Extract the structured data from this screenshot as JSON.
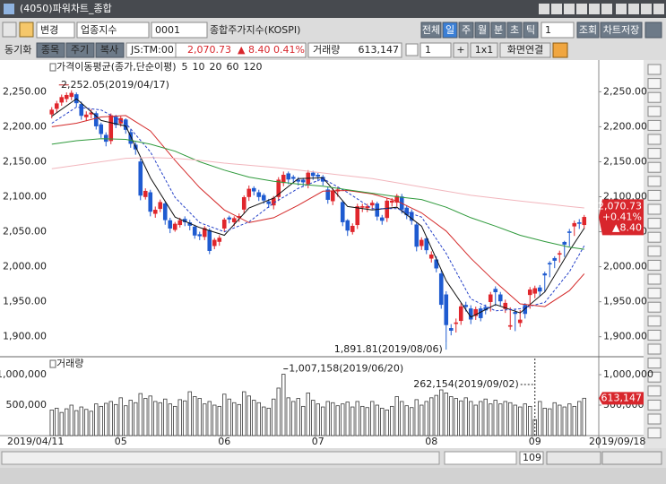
{
  "window": {
    "title": "(4050)파워차트_종합"
  },
  "toolbar": {
    "change": "변경",
    "market": "업종지수",
    "code": "0001",
    "name": "종합주가지수(KOSPI)",
    "periods": [
      "전체",
      "일",
      "주",
      "월",
      "분",
      "초",
      "틱"
    ],
    "count": "1",
    "query": "조회",
    "save": "차트저장",
    "sync": "동기화",
    "sync_buttons": [
      "종목",
      "주기",
      "복사"
    ],
    "time": "JS:TM:00",
    "price": "2,070.73",
    "change_value": "▲ 8.40",
    "change_pct": "0.41%",
    "volume_label": "거래량",
    "volume": "613,147",
    "layout_count": "1",
    "plus": "+",
    "grid": "1x1",
    "link": "화면연결"
  },
  "chart_data": [
    {
      "type": "candlestick",
      "legend_title": "가격이동평균(종가,단순이평)",
      "up_color": "#e0262c",
      "down_color": "#1f5bd0",
      "categories": [
        "2019/04/11",
        null,
        null,
        null,
        null,
        null,
        null,
        null,
        null,
        null,
        null,
        null,
        null,
        null,
        "05",
        null,
        null,
        null,
        null,
        null,
        null,
        null,
        null,
        null,
        null,
        null,
        null,
        null,
        null,
        null,
        null,
        null,
        null,
        null,
        null,
        "06",
        null,
        null,
        null,
        null,
        null,
        null,
        null,
        null,
        null,
        null,
        null,
        null,
        null,
        null,
        null,
        null,
        null,
        null,
        "07",
        null,
        null,
        null,
        null,
        null,
        null,
        null,
        null,
        null,
        null,
        null,
        null,
        null,
        null,
        null,
        null,
        null,
        null,
        null,
        null,
        null,
        null,
        "08",
        null,
        null,
        null,
        null,
        null,
        null,
        null,
        null,
        null,
        null,
        null,
        null,
        null,
        null,
        null,
        null,
        null,
        null,
        null,
        null,
        "09",
        null,
        null,
        null,
        null,
        null,
        null,
        null,
        null,
        null,
        "2019/09/18"
      ],
      "open": [
        2218,
        2226,
        2235,
        2240,
        2243,
        2246,
        2232,
        2214,
        2218,
        2219,
        2203,
        2188,
        2180,
        2214,
        2205,
        2210,
        2192,
        2174,
        2150,
        2100,
        2106,
        2076,
        2083,
        2090,
        2066,
        2053,
        2060,
        2068,
        2063,
        2057,
        2046,
        2043,
        2052,
        2030,
        2036,
        2055,
        2070,
        2064,
        2070,
        2082,
        2100,
        2112,
        2106,
        2102,
        2093,
        2088,
        2100,
        2120,
        2133,
        2128,
        2124,
        2124,
        2118,
        2134,
        2131,
        2128,
        2110,
        2094,
        2108,
        2092,
        2066,
        2050,
        2060,
        2085,
        2084,
        2088,
        2090,
        2070,
        2070,
        2092,
        2092,
        2100,
        2084,
        2078,
        2060,
        2030,
        2040,
        2012,
        2010,
        1990,
        1960,
        1912,
        1920,
        1923,
        1945,
        1940,
        1930,
        1940,
        1942,
        1950,
        1968,
        1960,
        1940,
        1915,
        1935,
        1920,
        1945,
        1960,
        1962,
        1970,
        1990,
        2005,
        2012,
        2018,
        2035,
        2050,
        2058,
        2063,
        2060
      ],
      "high": [
        2228,
        2237,
        2246,
        2249,
        2252.05,
        2249,
        2236,
        2222,
        2225,
        2222,
        2206,
        2192,
        2219,
        2217,
        2215,
        2212,
        2196,
        2178,
        2155,
        2112,
        2110,
        2086,
        2096,
        2093,
        2070,
        2064,
        2070,
        2072,
        2067,
        2060,
        2050,
        2058,
        2055,
        2041,
        2045,
        2070,
        2073,
        2072,
        2076,
        2102,
        2116,
        2115,
        2110,
        2105,
        2097,
        2101,
        2128,
        2136,
        2136,
        2131,
        2128,
        2127,
        2138,
        2137,
        2134,
        2131,
        2114,
        2112,
        2114,
        2095,
        2068,
        2062,
        2090,
        2090,
        2090,
        2095,
        2093,
        2074,
        2098,
        2098,
        2104,
        2104,
        2088,
        2082,
        2063,
        2042,
        2043,
        2022,
        2015,
        1995,
        1965,
        1918,
        1926,
        1948,
        1950,
        1945,
        1943,
        1944,
        1946,
        1964,
        1972,
        1964,
        1953,
        1942,
        1940,
        1938,
        1948,
        1971,
        1973,
        1974,
        1993,
        2008,
        2015,
        2023,
        2037,
        2054,
        2066,
        2068,
        2074
      ],
      "low": [
        2212,
        2220,
        2230,
        2235,
        2238,
        2228,
        2210,
        2208,
        2212,
        2196,
        2184,
        2172,
        2175,
        2198,
        2200,
        2190,
        2170,
        2160,
        2095,
        2096,
        2072,
        2070,
        2078,
        2060,
        2048,
        2050,
        2056,
        2058,
        2052,
        2040,
        2038,
        2038,
        2018,
        2025,
        2030,
        2050,
        2062,
        2058,
        2064,
        2076,
        2094,
        2102,
        2094,
        2090,
        2084,
        2082,
        2094,
        2115,
        2118,
        2120,
        2116,
        2114,
        2112,
        2124,
        2122,
        2116,
        2090,
        2088,
        2100,
        2058,
        2044,
        2046,
        2054,
        2078,
        2078,
        2082,
        2066,
        2060,
        2064,
        2086,
        2086,
        2076,
        2068,
        2060,
        2022,
        2024,
        2018,
        2006,
        1992,
        1940,
        1891.81,
        1902,
        1906,
        1917,
        1936,
        1918,
        1924,
        1922,
        1932,
        1936,
        1944,
        1944,
        1934,
        1910,
        1908,
        1914,
        1926,
        1940,
        1955,
        1958,
        1964,
        1985,
        1998,
        2006,
        2014,
        2029,
        2044,
        2054,
        2054
      ],
      "close": [
        2224,
        2233,
        2242,
        2245,
        2248,
        2234,
        2216,
        2217,
        2220,
        2201,
        2190,
        2179,
        2216,
        2203,
        2212,
        2196,
        2176,
        2168,
        2102,
        2108,
        2079,
        2081,
        2092,
        2067,
        2055,
        2061,
        2066,
        2064,
        2059,
        2045,
        2044,
        2055,
        2023,
        2038,
        2041,
        2067,
        2068,
        2069,
        2072,
        2099,
        2111,
        2108,
        2100,
        2095,
        2090,
        2098,
        2124,
        2131,
        2125,
        2126,
        2122,
        2121,
        2134,
        2130,
        2129,
        2122,
        2096,
        2108,
        2110,
        2064,
        2052,
        2058,
        2086,
        2086,
        2086,
        2091,
        2072,
        2066,
        2094,
        2094,
        2101,
        2082,
        2074,
        2066,
        2029,
        2038,
        2024,
        2017,
        1998,
        1946,
        1917,
        1909,
        1920,
        1943,
        1943,
        1925,
        1939,
        1927,
        1938,
        1960,
        1964,
        1951,
        1948,
        1916,
        1933,
        1924,
        1933,
        1967,
        1969,
        1965,
        1988,
        2004,
        2009,
        2019,
        2032,
        2049,
        2062,
        2062,
        2070.73
      ],
      "series": [
        {
          "name": "5",
          "color": "#111111",
          "dash": false,
          "x": [
            0,
            5,
            10,
            15,
            20,
            25,
            30,
            35,
            40,
            45,
            50,
            55,
            60,
            65,
            70,
            75,
            80,
            85,
            90,
            95,
            100,
            105,
            108
          ],
          "values": [
            2215,
            2240,
            2209,
            2201,
            2127,
            2071,
            2056,
            2045,
            2084,
            2098,
            2126,
            2127,
            2086,
            2081,
            2085,
            2058,
            1980,
            1928,
            1946,
            1934,
            1964,
            2023,
            2055
          ]
        },
        {
          "name": "10",
          "color": "#2440c8",
          "dash": true,
          "x": [
            0,
            5,
            10,
            15,
            20,
            25,
            30,
            35,
            40,
            45,
            50,
            55,
            60,
            65,
            70,
            75,
            80,
            85,
            90,
            95,
            100,
            105,
            108
          ],
          "values": [
            2205,
            2228,
            2224,
            2205,
            2164,
            2099,
            2063,
            2050,
            2064,
            2091,
            2112,
            2126,
            2106,
            2083,
            2083,
            2071,
            2019,
            1954,
            1937,
            1940,
            1949,
            1993,
            2030
          ]
        },
        {
          "name": "20",
          "color": "#d42a2a",
          "dash": false,
          "x": [
            0,
            5,
            10,
            15,
            20,
            25,
            30,
            35,
            40,
            45,
            50,
            55,
            60,
            65,
            70,
            75,
            80,
            85,
            90,
            95,
            100,
            105,
            108
          ],
          "values": [
            2200,
            2205,
            2214,
            2216,
            2194,
            2152,
            2113,
            2081,
            2063,
            2070,
            2088,
            2108,
            2109,
            2104,
            2094,
            2077,
            2051,
            2012,
            1978,
            1947,
            1943,
            1966,
            1990
          ]
        },
        {
          "name": "60",
          "color": "#2f9a3c",
          "dash": false,
          "x": [
            0,
            5,
            10,
            15,
            20,
            25,
            30,
            35,
            40,
            45,
            50,
            55,
            60,
            65,
            70,
            75,
            80,
            85,
            90,
            95,
            100,
            105,
            108
          ],
          "values": [
            2175,
            2180,
            2183,
            2182,
            2175,
            2165,
            2150,
            2138,
            2128,
            2122,
            2118,
            2115,
            2110,
            2105,
            2100,
            2096,
            2085,
            2070,
            2058,
            2045,
            2036,
            2028,
            2025
          ]
        },
        {
          "name": "120",
          "color": "#f2b6bd",
          "dash": false,
          "x": [
            0,
            5,
            10,
            15,
            20,
            25,
            30,
            35,
            40,
            45,
            50,
            55,
            60,
            65,
            70,
            75,
            80,
            85,
            90,
            95,
            100,
            105,
            108
          ],
          "values": [
            2140,
            2145,
            2150,
            2155,
            2156,
            2155,
            2152,
            2148,
            2145,
            2142,
            2138,
            2134,
            2130,
            2126,
            2120,
            2114,
            2108,
            2102,
            2098,
            2094,
            2090,
            2086,
            2084
          ]
        }
      ],
      "ylim": [
        1874,
        2294
      ],
      "yticks": [
        {
          "value": 2250,
          "label": "2,250.00"
        },
        {
          "value": 2200,
          "label": "2,200.00"
        },
        {
          "value": 2150,
          "label": "2,150.00"
        },
        {
          "value": 2100,
          "label": "2,100.00"
        },
        {
          "value": 2050,
          "label": "2,050.00"
        },
        {
          "value": 2000,
          "label": "2,000.00"
        },
        {
          "value": 1950,
          "label": "1,950.00"
        },
        {
          "value": 1900,
          "label": "1,900.00"
        }
      ],
      "annotations": [
        "2,252.05(2019/04/17)",
        "1,891.81(2019/08/06)"
      ],
      "last_tag": [
        "2,070.73",
        "+0.41%",
        "▲8.40"
      ]
    },
    {
      "type": "bar",
      "legend_title": "거래량",
      "values": [
        420000,
        450000,
        380000,
        440000,
        500000,
        410000,
        470000,
        430000,
        400000,
        520000,
        480000,
        530000,
        560000,
        510000,
        620000,
        490000,
        580000,
        540000,
        690000,
        610000,
        650000,
        560000,
        540000,
        600000,
        520000,
        480000,
        590000,
        570000,
        720000,
        640000,
        610000,
        520000,
        560000,
        500000,
        480000,
        680000,
        600000,
        540000,
        510000,
        720000,
        650000,
        580000,
        540000,
        470000,
        450000,
        600000,
        780000,
        1007158,
        620000,
        560000,
        610000,
        480000,
        700000,
        580000,
        520000,
        470000,
        560000,
        540000,
        490000,
        520000,
        550000,
        470000,
        560000,
        480000,
        460000,
        560000,
        500000,
        450000,
        420000,
        480000,
        640000,
        560000,
        490000,
        460000,
        590000,
        500000,
        560000,
        620000,
        660000,
        750000,
        700000,
        640000,
        610000,
        570000,
        620000,
        560000,
        500000,
        560000,
        600000,
        520000,
        580000,
        520000,
        560000,
        540000,
        500000,
        470000,
        520000,
        480000,
        262154,
        560000,
        450000,
        440000,
        540000,
        500000,
        470000,
        520000,
        480000,
        560000,
        613147
      ],
      "color": "#ffffff",
      "stroke": "#3a3a3a",
      "ylim": [
        0,
        1265000
      ],
      "yticks": [
        {
          "value": 1000000,
          "label": "1,000,000"
        },
        {
          "value": 500000,
          "label": "500,000"
        }
      ],
      "annotations": [
        "1,007,158(2019/06/20)",
        "262,154(2019/09/02)"
      ],
      "last_tag": "613,147"
    }
  ],
  "bottom_bar": {
    "count": "109"
  }
}
